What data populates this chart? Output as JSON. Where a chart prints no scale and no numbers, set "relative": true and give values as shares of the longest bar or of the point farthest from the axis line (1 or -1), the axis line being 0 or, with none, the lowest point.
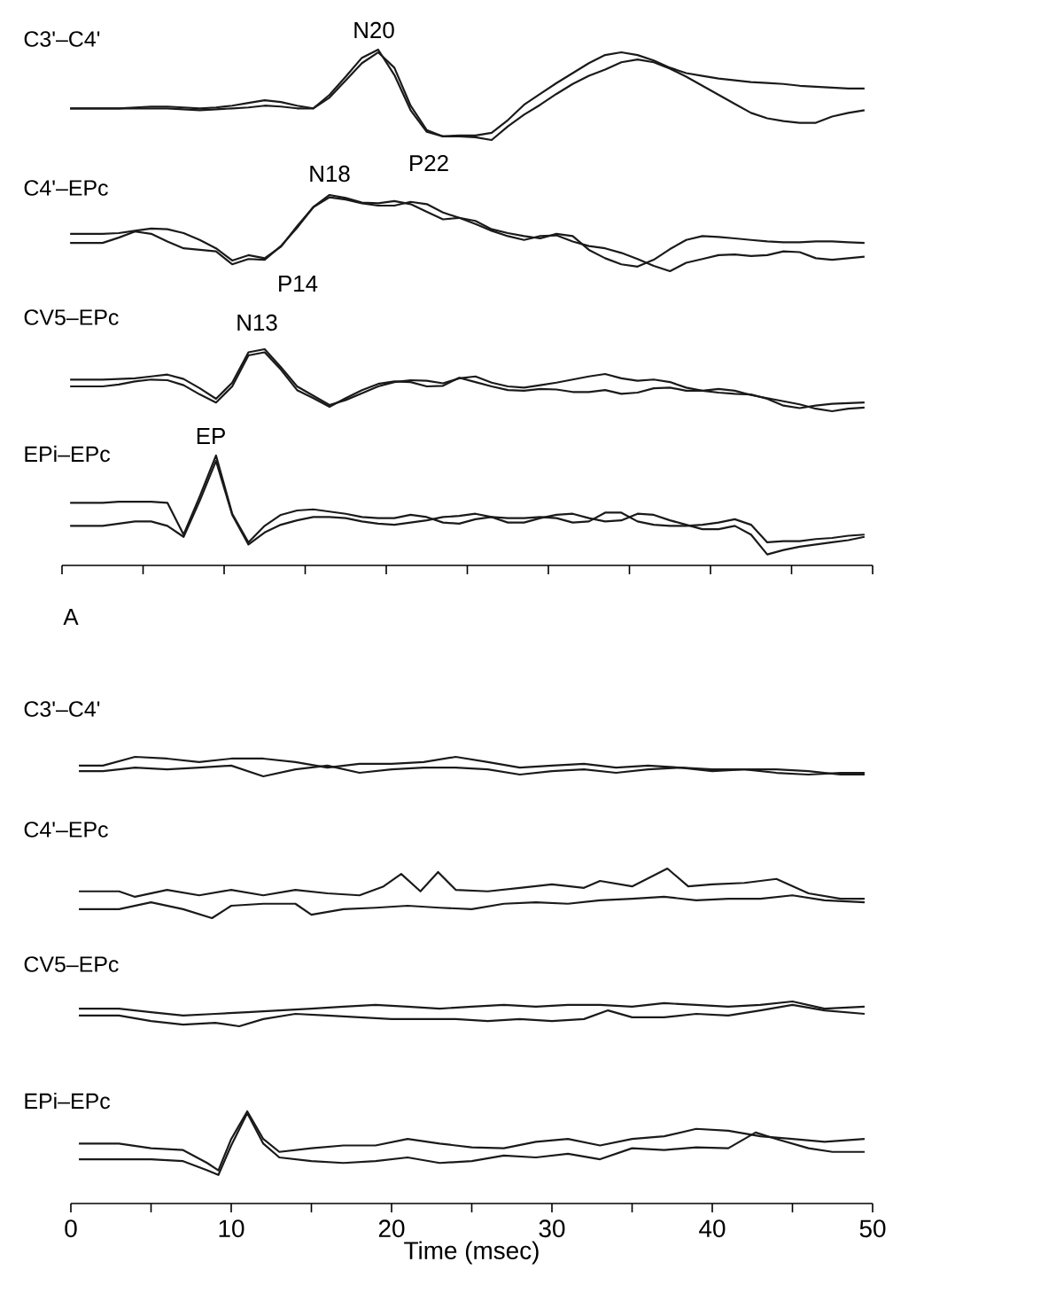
{
  "chart_data": [
    {
      "type": "line",
      "title": "C3'–C4'",
      "relative": true,
      "annotations": [
        "N20",
        "P22"
      ],
      "categories": [
        null,
        null,
        null,
        null,
        null,
        null,
        null,
        null,
        null,
        null,
        null,
        null,
        null,
        null,
        null,
        null,
        null,
        null,
        null,
        null,
        null,
        null,
        null,
        null,
        null,
        null,
        null,
        null,
        null,
        null,
        null,
        null,
        null,
        null,
        null,
        null,
        null,
        null,
        null,
        null,
        null,
        null,
        null,
        null,
        null,
        null,
        null,
        null,
        null,
        null
      ],
      "series": [
        {
          "color": "#1a1a1a",
          "values": [
            0.35,
            0.35,
            0.35,
            0.35,
            0.36,
            0.37,
            0.37,
            0.36,
            0.35,
            0.36,
            0.38,
            0.41,
            0.44,
            0.42,
            0.38,
            0.35,
            0.5,
            0.7,
            0.91,
            1.0,
            0.72,
            0.33,
            0.09,
            0.04,
            0.05,
            0.05,
            0.08,
            0.22,
            0.39,
            0.51,
            0.63,
            0.74,
            0.85,
            0.94,
            0.97,
            0.94,
            0.88,
            0.8,
            0.74,
            0.71,
            0.68,
            0.66,
            0.64,
            0.63,
            0.62,
            0.6,
            0.59,
            0.58,
            0.57,
            0.57
          ]
        },
        {
          "color": "#1a1a1a",
          "values": [
            0.35,
            0.35,
            0.35,
            0.35,
            0.35,
            0.35,
            0.35,
            0.34,
            0.33,
            0.34,
            0.35,
            0.36,
            0.38,
            0.37,
            0.35,
            0.35,
            0.47,
            0.66,
            0.85,
            0.97,
            0.8,
            0.38,
            0.11,
            0.04,
            0.04,
            0.03,
            0,
            0.15,
            0.28,
            0.39,
            0.51,
            0.62,
            0.71,
            0.78,
            0.86,
            0.89,
            0.86,
            0.79,
            0.7,
            0.6,
            0.5,
            0.4,
            0.3,
            0.24,
            0.21,
            0.19,
            0.19,
            0.26,
            0.3,
            0.33
          ]
        }
      ]
    },
    {
      "type": "line",
      "title": "C4'–EPc",
      "relative": true,
      "annotations": [
        "N18",
        "P14"
      ],
      "categories": [
        null,
        null,
        null,
        null,
        null,
        null,
        null,
        null,
        null,
        null,
        null,
        null,
        null,
        null,
        null,
        null,
        null,
        null,
        null,
        null,
        null,
        null,
        null,
        null,
        null,
        null,
        null,
        null,
        null,
        null,
        null,
        null,
        null,
        null,
        null,
        null,
        null,
        null,
        null,
        null,
        null,
        null,
        null,
        null,
        null,
        null,
        null,
        null,
        null,
        null
      ],
      "series": [
        {
          "color": "#1a1a1a",
          "values": [
            0.49,
            0.49,
            0.49,
            0.5,
            0.53,
            0.56,
            0.55,
            0.5,
            0.41,
            0.3,
            0.14,
            0.21,
            0.17,
            0.32,
            0.59,
            0.84,
            1.0,
            0.96,
            0.9,
            0.89,
            0.92,
            0.88,
            0.78,
            0.68,
            0.7,
            0.66,
            0.55,
            0.5,
            0.46,
            0.43,
            0.49,
            0.46,
            0.28,
            0.17,
            0.09,
            0.06,
            0.15,
            0.29,
            0.41,
            0.46,
            0.45,
            0.43,
            0.41,
            0.39,
            0.38,
            0.38,
            0.39,
            0.39,
            0.38,
            0.37
          ]
        },
        {
          "color": "#1a1a1a",
          "values": [
            0.37,
            0.37,
            0.37,
            0.44,
            0.52,
            0.49,
            0.39,
            0.3,
            0.28,
            0.26,
            0.09,
            0.16,
            0.15,
            0.33,
            0.57,
            0.84,
            0.97,
            0.94,
            0.89,
            0.86,
            0.86,
            0.91,
            0.88,
            0.77,
            0.7,
            0.62,
            0.53,
            0.46,
            0.41,
            0.46,
            0.47,
            0.39,
            0.33,
            0.3,
            0.24,
            0.16,
            0.07,
            0,
            0.11,
            0.16,
            0.21,
            0.22,
            0.2,
            0.21,
            0.26,
            0.25,
            0.17,
            0.15,
            0.17,
            0.19
          ]
        }
      ]
    },
    {
      "type": "line",
      "title": "CV5–EPc",
      "relative": true,
      "annotations": [
        "N13"
      ],
      "categories": [
        null,
        null,
        null,
        null,
        null,
        null,
        null,
        null,
        null,
        null,
        null,
        null,
        null,
        null,
        null,
        null,
        null,
        null,
        null,
        null,
        null,
        null,
        null,
        null,
        null,
        null,
        null,
        null,
        null,
        null,
        null,
        null,
        null,
        null,
        null,
        null,
        null,
        null,
        null,
        null,
        null,
        null,
        null,
        null,
        null,
        null,
        null,
        null,
        null,
        null
      ],
      "series": [
        {
          "color": "#1a1a1a",
          "values": [
            0.51,
            0.51,
            0.51,
            0.52,
            0.53,
            0.56,
            0.59,
            0.52,
            0.37,
            0.2,
            0.46,
            0.95,
            1.0,
            0.71,
            0.4,
            0.25,
            0.1,
            0.18,
            0.29,
            0.4,
            0.47,
            0.5,
            0.49,
            0.45,
            0.53,
            0.56,
            0.46,
            0.4,
            0.38,
            0.42,
            0.46,
            0.51,
            0.56,
            0.6,
            0.53,
            0.49,
            0.51,
            0.47,
            0.38,
            0.33,
            0.3,
            0.28,
            0.27,
            0.2,
            0.09,
            0.05,
            0.09,
            0.12,
            0.13,
            0.14
          ]
        },
        {
          "color": "#1a1a1a",
          "values": [
            0.4,
            0.4,
            0.4,
            0.43,
            0.48,
            0.51,
            0.5,
            0.42,
            0.27,
            0.14,
            0.4,
            0.9,
            0.95,
            0.67,
            0.34,
            0.21,
            0.07,
            0.21,
            0.34,
            0.44,
            0.48,
            0.47,
            0.4,
            0.41,
            0.54,
            0.47,
            0.4,
            0.34,
            0.33,
            0.36,
            0.35,
            0.31,
            0.31,
            0.34,
            0.28,
            0.3,
            0.37,
            0.38,
            0.33,
            0.33,
            0.36,
            0.33,
            0.26,
            0.21,
            0.16,
            0.11,
            0.04,
            0,
            0.04,
            0.06
          ]
        }
      ]
    },
    {
      "type": "line",
      "title": "EPi–EPc",
      "relative": true,
      "annotations": [
        "EP",
        "A"
      ],
      "categories": [
        null,
        null,
        null,
        null,
        null,
        null,
        null,
        null,
        null,
        null,
        null,
        null,
        null,
        null,
        null,
        null,
        null,
        null,
        null,
        null,
        null,
        null,
        null,
        null,
        null,
        null,
        null,
        null,
        null,
        null,
        null,
        null,
        null,
        null,
        null,
        null,
        null,
        null,
        null,
        null,
        null,
        null,
        null,
        null,
        null,
        null,
        null,
        null,
        null,
        null
      ],
      "series": [
        {
          "color": "#1a1a1a",
          "values": [
            0.57,
            0.57,
            0.57,
            0.58,
            0.58,
            0.58,
            0.57,
            0.28,
            0.63,
            1.0,
            0.47,
            0.21,
            0.36,
            0.46,
            0.5,
            0.51,
            0.49,
            0.47,
            0.44,
            0.43,
            0.43,
            0.46,
            0.44,
            0.39,
            0.38,
            0.42,
            0.44,
            0.43,
            0.43,
            0.44,
            0.43,
            0.39,
            0.4,
            0.48,
            0.48,
            0.4,
            0.37,
            0.36,
            0.36,
            0.37,
            0.39,
            0.42,
            0.37,
            0.21,
            0.22,
            0.22,
            0.24,
            0.25,
            0.27,
            0.28
          ]
        },
        {
          "color": "#1a1a1a",
          "values": [
            0.36,
            0.36,
            0.36,
            0.38,
            0.4,
            0.4,
            0.36,
            0.26,
            0.59,
            0.95,
            0.46,
            0.19,
            0.3,
            0.37,
            0.41,
            0.44,
            0.44,
            0.43,
            0.4,
            0.38,
            0.37,
            0.39,
            0.41,
            0.44,
            0.45,
            0.47,
            0.44,
            0.39,
            0.39,
            0.43,
            0.46,
            0.47,
            0.43,
            0.4,
            0.41,
            0.47,
            0.46,
            0.41,
            0.37,
            0.33,
            0.33,
            0.36,
            0.28,
            0.1,
            0.14,
            0.17,
            0.19,
            0.21,
            0.23,
            0.26
          ]
        }
      ]
    },
    {
      "type": "line",
      "title": "C3'–C4'",
      "relative": true,
      "xlim": [
        0,
        50
      ],
      "tick_labels": false,
      "series": [
        {
          "color": "#1a1a1a",
          "x": [
            0.5,
            2,
            4,
            6,
            8,
            10,
            12,
            14,
            16,
            18,
            20,
            22,
            24,
            26,
            28,
            30,
            32,
            34,
            36,
            38,
            40,
            42,
            44,
            46,
            48,
            49.5
          ],
          "values": [
            0.55,
            0.55,
            1.0,
            0.91,
            0.73,
            0.91,
            0.91,
            0.73,
            0.45,
            0.64,
            0.64,
            0.73,
            1.0,
            0.73,
            0.45,
            0.55,
            0.64,
            0.45,
            0.55,
            0.45,
            0.36,
            0.36,
            0.18,
            0.09,
            0.18,
            0.18
          ]
        },
        {
          "color": "#1a1a1a",
          "x": [
            0.5,
            2,
            4,
            6,
            8,
            10,
            12,
            14,
            16,
            18,
            20,
            22,
            24,
            26,
            28,
            30,
            32,
            34,
            36,
            38,
            40,
            42,
            44,
            46,
            48,
            49.5
          ],
          "values": [
            0.27,
            0.27,
            0.45,
            0.36,
            0.45,
            0.55,
            0,
            0.36,
            0.55,
            0.18,
            0.36,
            0.45,
            0.45,
            0.36,
            0.09,
            0.27,
            0.36,
            0.18,
            0.36,
            0.45,
            0.27,
            0.36,
            0.36,
            0.27,
            0.09,
            0.09
          ]
        }
      ]
    },
    {
      "type": "line",
      "title": "C4'–EPc",
      "relative": true,
      "xlim": [
        0,
        50
      ],
      "tick_labels": false,
      "series": [
        {
          "color": "#1a1a1a",
          "x": [
            0.5,
            3,
            4,
            6,
            8,
            10,
            12,
            14,
            16,
            18,
            19.5,
            20.6,
            21.8,
            22.9,
            24,
            26,
            28,
            30,
            32,
            33,
            35,
            37.2,
            38.5,
            40,
            42,
            44,
            46,
            48,
            49.5
          ],
          "values": [
            0.54,
            0.54,
            0.43,
            0.57,
            0.46,
            0.57,
            0.46,
            0.57,
            0.5,
            0.46,
            0.64,
            0.89,
            0.54,
            0.93,
            0.57,
            0.54,
            0.61,
            0.68,
            0.61,
            0.75,
            0.64,
            1.0,
            0.64,
            0.68,
            0.71,
            0.79,
            0.5,
            0.39,
            0.39
          ]
        },
        {
          "color": "#1a1a1a",
          "x": [
            0.5,
            3,
            5,
            7,
            8.8,
            10,
            12,
            14,
            15,
            17,
            19,
            21,
            23,
            25,
            27,
            29,
            31,
            33,
            35,
            37,
            39,
            41,
            43,
            45,
            47,
            49.5
          ],
          "values": [
            0.18,
            0.18,
            0.32,
            0.18,
            0,
            0.25,
            0.29,
            0.29,
            0.07,
            0.18,
            0.21,
            0.25,
            0.21,
            0.18,
            0.29,
            0.32,
            0.29,
            0.36,
            0.39,
            0.43,
            0.36,
            0.39,
            0.39,
            0.46,
            0.36,
            0.32
          ]
        }
      ]
    },
    {
      "type": "line",
      "title": "CV5–EPc",
      "relative": true,
      "xlim": [
        0,
        50
      ],
      "tick_labels": false,
      "series": [
        {
          "color": "#1a1a1a",
          "x": [
            0.5,
            3,
            5,
            7,
            9,
            11,
            13,
            15,
            17,
            19,
            21,
            23,
            25,
            27,
            29,
            31,
            33,
            35,
            37,
            39,
            41,
            43,
            45,
            47,
            49.5
          ],
          "values": [
            0.71,
            0.71,
            0.57,
            0.43,
            0.5,
            0.57,
            0.64,
            0.71,
            0.79,
            0.86,
            0.79,
            0.71,
            0.79,
            0.86,
            0.79,
            0.86,
            0.86,
            0.79,
            0.93,
            0.86,
            0.79,
            0.86,
            1.0,
            0.71,
            0.79
          ]
        },
        {
          "color": "#1a1a1a",
          "x": [
            0.5,
            3,
            5,
            7,
            9,
            10.5,
            12,
            14,
            16,
            18,
            20,
            22,
            24,
            26,
            28,
            30,
            32,
            33.5,
            35,
            37,
            39,
            41,
            43,
            45,
            47,
            49.5
          ],
          "values": [
            0.43,
            0.43,
            0.21,
            0.07,
            0.14,
            0,
            0.29,
            0.5,
            0.43,
            0.36,
            0.29,
            0.29,
            0.29,
            0.21,
            0.29,
            0.21,
            0.29,
            0.64,
            0.36,
            0.36,
            0.5,
            0.43,
            0.64,
            0.86,
            0.64,
            0.5
          ]
        }
      ]
    },
    {
      "type": "line",
      "title": "EPi–EPc",
      "relative": true,
      "xlim": [
        0,
        50
      ],
      "tick_labels": "x",
      "xlabel": "Time (msec)",
      "xticks": [
        0,
        10,
        20,
        30,
        40,
        50
      ],
      "series": [
        {
          "color": "#1a1a1a",
          "x": [
            0.5,
            3,
            5,
            7,
            8.5,
            9.2,
            10,
            11,
            12,
            13,
            15,
            17,
            19,
            21,
            23,
            25,
            27,
            29,
            31,
            33,
            35,
            37,
            39,
            41,
            43,
            45,
            47,
            49.5
          ],
          "values": [
            0.65,
            0.65,
            0.6,
            0.58,
            0.44,
            0.36,
            0.7,
            1.0,
            0.7,
            0.56,
            0.6,
            0.63,
            0.63,
            0.7,
            0.65,
            0.61,
            0.6,
            0.67,
            0.7,
            0.63,
            0.7,
            0.73,
            0.81,
            0.79,
            0.73,
            0.7,
            0.67,
            0.7
          ]
        },
        {
          "color": "#1a1a1a",
          "x": [
            0.5,
            3,
            5,
            7,
            8.5,
            9.2,
            10,
            11,
            12,
            13,
            15,
            17,
            19,
            21,
            23,
            25,
            27,
            29,
            31,
            33,
            35,
            37,
            39,
            41,
            42.7,
            44,
            46,
            47.5,
            49.5
          ],
          "values": [
            0.48,
            0.48,
            0.48,
            0.46,
            0.36,
            0.31,
            0.63,
            0.98,
            0.65,
            0.5,
            0.46,
            0.44,
            0.46,
            0.5,
            0.44,
            0.46,
            0.52,
            0.5,
            0.54,
            0.48,
            0.6,
            0.58,
            0.61,
            0.6,
            0.77,
            0.7,
            0.6,
            0.56,
            0.56
          ]
        }
      ]
    }
  ]
}
